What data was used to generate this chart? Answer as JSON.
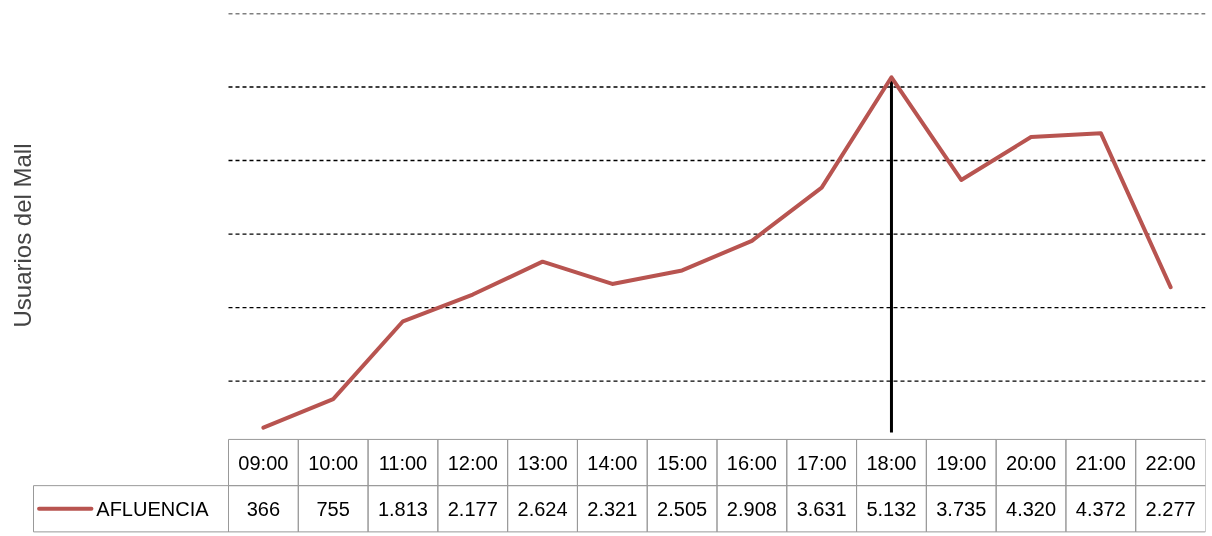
{
  "chart_data": {
    "type": "line",
    "annotations": [
      "Usuarios del Mall"
    ],
    "categories": [
      "09:00",
      "10:00",
      "11:00",
      "12:00",
      "13:00",
      "14:00",
      "15:00",
      "16:00",
      "17:00",
      "18:00",
      "19:00",
      "20:00",
      "21:00",
      "22:00"
    ],
    "series": [
      {
        "name": "AFLUENCIA",
        "color": "#b85450",
        "values": [
          366,
          755,
          1813,
          2177,
          2624,
          2321,
          2505,
          2908,
          3631,
          5132,
          3735,
          4320,
          4372,
          2277
        ],
        "value_labels": [
          "366",
          "755",
          "1.813",
          "2.177",
          "2.624",
          "2.321",
          "2.505",
          "2.908",
          "3.631",
          "5.132",
          "3.735",
          "4.320",
          "4.372",
          "2.277"
        ]
      }
    ],
    "ylim": [
      300,
      6000
    ],
    "yticks": [
      {
        "value": 1000,
        "label": null
      },
      {
        "value": 2000,
        "label": null
      },
      {
        "value": 3000,
        "label": null
      },
      {
        "value": 4000,
        "label": null
      },
      {
        "value": 5000,
        "label": null
      },
      {
        "value": 6000,
        "label": null
      }
    ],
    "grid": "y",
    "line_style": "solid",
    "marker": "none",
    "ref_lines": [
      {
        "axis": "x",
        "value": "18:00",
        "color": "#000000"
      }
    ]
  }
}
